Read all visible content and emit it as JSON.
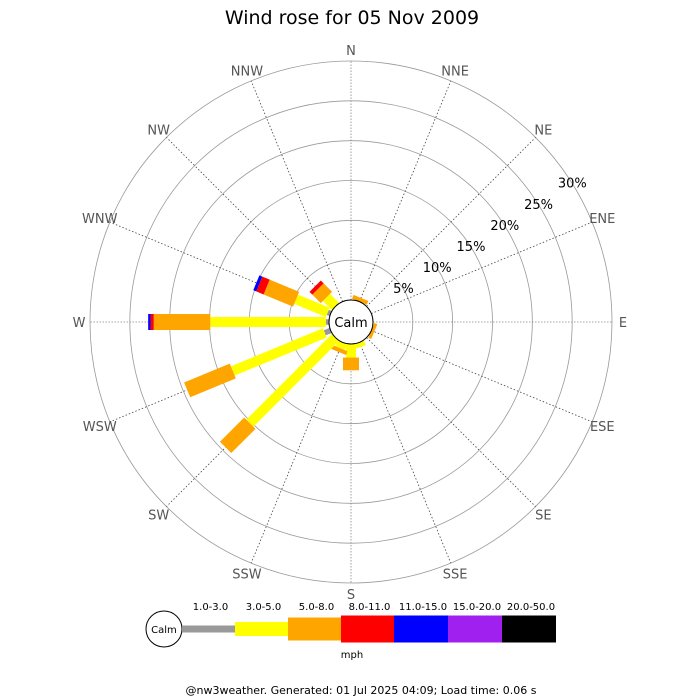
{
  "chart_data": {
    "type": "wind-rose",
    "title": "Wind rose for 05 Nov 2009",
    "directions": [
      "N",
      "NNE",
      "NE",
      "ENE",
      "E",
      "ESE",
      "SE",
      "SSE",
      "S",
      "SSW",
      "SW",
      "WSW",
      "W",
      "WNW",
      "NW",
      "NNW"
    ],
    "radial_ticks": [
      "5%",
      "10%",
      "15%",
      "20%",
      "25%",
      "30%"
    ],
    "radial_max": 30,
    "calm_label": "Calm",
    "speed_bins": [
      "1.0-3.0",
      "3.0-5.0",
      "5.0-8.0",
      "8.0-11.0",
      "11.0-15.0",
      "15.0-20.0",
      "20.0-50.0"
    ],
    "unit": "mph",
    "colors": [
      "#999999",
      "#ffff00",
      "#ffa500",
      "#ff0000",
      "#0000ff",
      "#a020f0",
      "#000000"
    ],
    "series": [
      {
        "direction": "N",
        "values": [
          0,
          0,
          0,
          0,
          0,
          0,
          0
        ]
      },
      {
        "direction": "NNE",
        "values": [
          0,
          0,
          0.5,
          0,
          0,
          0,
          0
        ]
      },
      {
        "direction": "NE",
        "values": [
          0,
          0,
          0,
          0,
          0,
          0,
          0
        ]
      },
      {
        "direction": "ENE",
        "values": [
          0,
          0,
          0,
          0,
          0,
          0,
          0
        ]
      },
      {
        "direction": "E",
        "values": [
          0,
          0,
          0,
          0,
          0,
          0,
          0
        ]
      },
      {
        "direction": "ESE",
        "values": [
          0,
          0,
          0.4,
          0,
          0,
          0,
          0
        ]
      },
      {
        "direction": "SE",
        "values": [
          0,
          0,
          0,
          0,
          0,
          0,
          0
        ]
      },
      {
        "direction": "SSE",
        "values": [
          0,
          0.6,
          0,
          0,
          0,
          0,
          0
        ]
      },
      {
        "direction": "S",
        "values": [
          0,
          1.7,
          1.6,
          0,
          0,
          0,
          0
        ]
      },
      {
        "direction": "SSW",
        "values": [
          0,
          0.8,
          0.5,
          0,
          0,
          0,
          0
        ]
      },
      {
        "direction": "SW",
        "values": [
          0,
          15.2,
          4.3,
          0,
          0,
          0,
          0
        ]
      },
      {
        "direction": "WSW",
        "values": [
          0.8,
          12.5,
          6.2,
          0,
          0,
          0,
          0
        ]
      },
      {
        "direction": "W",
        "values": [
          0.4,
          14.5,
          7.1,
          0.4,
          0.3,
          0,
          0
        ]
      },
      {
        "direction": "WNW",
        "values": [
          0.4,
          4.3,
          4.0,
          1.0,
          0.4,
          0,
          0
        ]
      },
      {
        "direction": "NW",
        "values": [
          0,
          1.6,
          1.5,
          0.5,
          0,
          0,
          0
        ]
      },
      {
        "direction": "NNW",
        "values": [
          0,
          0,
          0,
          0,
          0,
          0,
          0
        ]
      }
    ]
  },
  "footer": "@nw3weather. Generated: 01 Jul 2025 04:09; Load time: 0.06 s"
}
